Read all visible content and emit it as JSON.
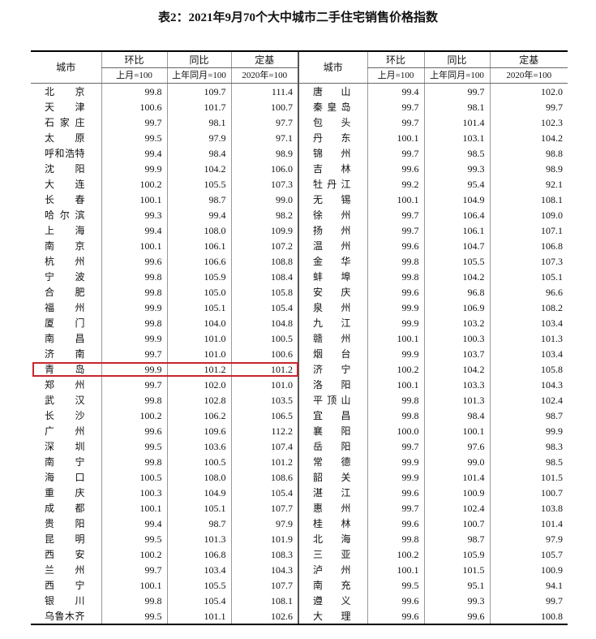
{
  "title": "表2：2021年9月70个大中城市二手住宅销售价格指数",
  "header": {
    "left": {
      "city": "城市",
      "mom": "环比",
      "mom_base": "上月=100",
      "yoy": "同比",
      "yoy_base": "上年同月=100",
      "fixed": "定基",
      "fixed_base": "2020年=100"
    },
    "right": {
      "city": "城市",
      "mom": "环比",
      "mom_base": "上月=100",
      "yoy": "同比",
      "yoy_base": "上年同月=100",
      "fixed": "定基",
      "fixed_base": "2020年=100"
    }
  },
  "table": {
    "rows": [
      [
        "北京",
        "99.8",
        "109.7",
        "111.4",
        "唐山",
        "99.4",
        "99.7",
        "102.0"
      ],
      [
        "天津",
        "100.6",
        "101.7",
        "100.7",
        "秦皇岛",
        "99.7",
        "98.1",
        "99.7"
      ],
      [
        "石家庄",
        "99.7",
        "98.1",
        "97.7",
        "包头",
        "99.7",
        "101.4",
        "102.3"
      ],
      [
        "太原",
        "99.5",
        "97.9",
        "97.1",
        "丹东",
        "100.1",
        "103.1",
        "104.2"
      ],
      [
        "呼和浩特",
        "99.4",
        "98.4",
        "98.9",
        "锦州",
        "99.7",
        "98.5",
        "98.8"
      ],
      [
        "沈阳",
        "99.9",
        "104.2",
        "106.0",
        "吉林",
        "99.6",
        "99.3",
        "98.9"
      ],
      [
        "大连",
        "100.2",
        "105.5",
        "107.3",
        "牡丹江",
        "99.2",
        "95.4",
        "92.1"
      ],
      [
        "长春",
        "100.1",
        "98.7",
        "99.0",
        "无锡",
        "100.1",
        "104.9",
        "108.1"
      ],
      [
        "哈尔滨",
        "99.3",
        "99.4",
        "98.2",
        "徐州",
        "99.7",
        "106.4",
        "109.0"
      ],
      [
        "上海",
        "99.4",
        "108.0",
        "109.9",
        "扬州",
        "99.7",
        "106.1",
        "107.1"
      ],
      [
        "南京",
        "100.1",
        "106.1",
        "107.2",
        "温州",
        "99.6",
        "104.7",
        "106.8"
      ],
      [
        "杭州",
        "99.6",
        "106.6",
        "108.8",
        "金华",
        "99.8",
        "105.5",
        "107.3"
      ],
      [
        "宁波",
        "99.8",
        "105.9",
        "108.4",
        "蚌埠",
        "99.8",
        "104.2",
        "105.1"
      ],
      [
        "合肥",
        "99.8",
        "105.0",
        "105.8",
        "安庆",
        "99.6",
        "96.8",
        "96.6"
      ],
      [
        "福州",
        "99.9",
        "105.1",
        "105.4",
        "泉州",
        "99.9",
        "106.9",
        "108.2"
      ],
      [
        "厦门",
        "99.8",
        "104.0",
        "104.8",
        "九江",
        "99.9",
        "103.2",
        "103.4"
      ],
      [
        "南昌",
        "99.9",
        "101.0",
        "100.5",
        "赣州",
        "100.1",
        "100.3",
        "101.3"
      ],
      [
        "济南",
        "99.7",
        "101.0",
        "100.6",
        "烟台",
        "99.9",
        "103.7",
        "103.4"
      ],
      [
        "青岛",
        "99.9",
        "101.2",
        "101.2",
        "济宁",
        "100.2",
        "104.2",
        "105.8"
      ],
      [
        "郑州",
        "99.7",
        "102.0",
        "101.0",
        "洛阳",
        "100.1",
        "103.3",
        "104.3"
      ],
      [
        "武汉",
        "99.8",
        "102.8",
        "103.5",
        "平顶山",
        "99.8",
        "101.3",
        "102.4"
      ],
      [
        "长沙",
        "100.2",
        "106.2",
        "106.5",
        "宜昌",
        "99.8",
        "98.4",
        "98.7"
      ],
      [
        "广州",
        "99.6",
        "109.6",
        "112.2",
        "襄阳",
        "100.0",
        "100.1",
        "99.9"
      ],
      [
        "深圳",
        "99.5",
        "103.6",
        "107.4",
        "岳阳",
        "99.7",
        "97.6",
        "98.3"
      ],
      [
        "南宁",
        "99.8",
        "100.5",
        "101.2",
        "常德",
        "99.9",
        "99.0",
        "98.5"
      ],
      [
        "海口",
        "100.5",
        "108.0",
        "108.6",
        "韶关",
        "99.9",
        "101.4",
        "101.5"
      ],
      [
        "重庆",
        "100.3",
        "104.9",
        "105.4",
        "湛江",
        "99.6",
        "100.9",
        "100.7"
      ],
      [
        "成都",
        "100.1",
        "105.1",
        "107.7",
        "惠州",
        "99.7",
        "102.4",
        "103.8"
      ],
      [
        "贵阳",
        "99.4",
        "98.7",
        "97.9",
        "桂林",
        "99.6",
        "100.7",
        "101.4"
      ],
      [
        "昆明",
        "99.5",
        "101.3",
        "101.9",
        "北海",
        "99.8",
        "98.7",
        "97.9"
      ],
      [
        "西安",
        "100.2",
        "106.8",
        "108.3",
        "三亚",
        "100.2",
        "105.9",
        "105.7"
      ],
      [
        "兰州",
        "99.7",
        "103.4",
        "104.3",
        "泸州",
        "100.1",
        "101.5",
        "100.9"
      ],
      [
        "西宁",
        "100.1",
        "105.5",
        "107.7",
        "南充",
        "99.5",
        "95.1",
        "94.1"
      ],
      [
        "银川",
        "99.8",
        "105.4",
        "108.1",
        "遵义",
        "99.6",
        "99.3",
        "99.7"
      ],
      [
        "乌鲁木齐",
        "99.5",
        "101.1",
        "102.6",
        "大理",
        "99.6",
        "99.6",
        "100.8"
      ]
    ]
  }
}
